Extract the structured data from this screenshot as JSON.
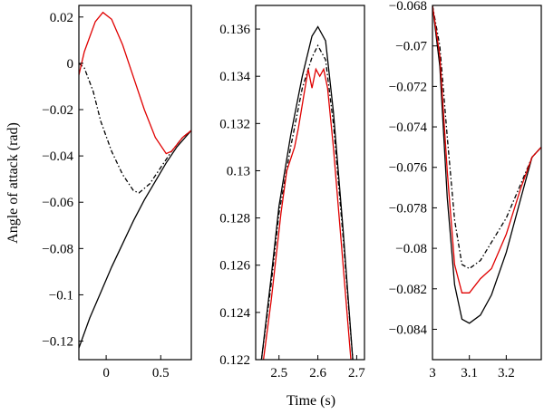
{
  "chart_data": [
    {
      "type": "line",
      "panel": "left",
      "xlim": [
        -0.25,
        0.78
      ],
      "ylim": [
        -0.128,
        0.025
      ],
      "xticks": [
        0,
        0.5
      ],
      "xtick_labels": [
        "0",
        "0.5"
      ],
      "yticks": [
        0.02,
        0,
        -0.02,
        -0.04,
        -0.06,
        -0.08,
        -0.1,
        -0.12
      ],
      "ytick_labels": [
        "0.02",
        "0",
        "−0.02",
        "−0.04",
        "−0.06",
        "−0.08",
        "−0.1",
        "−0.12"
      ],
      "ylabel": "Angle of attack (rad)",
      "series": [
        {
          "color": "#000000",
          "dash": "solid",
          "x": [
            -0.25,
            -0.15,
            -0.05,
            0.05,
            0.15,
            0.25,
            0.35,
            0.45,
            0.55,
            0.65,
            0.78
          ],
          "y": [
            -0.123,
            -0.11,
            -0.099,
            -0.088,
            -0.078,
            -0.068,
            -0.059,
            -0.051,
            -0.043,
            -0.036,
            -0.029
          ]
        },
        {
          "color": "#000000",
          "dash": "dashdot",
          "x": [
            -0.25,
            -0.2,
            -0.12,
            -0.05,
            0.05,
            0.15,
            0.25,
            0.3,
            0.4,
            0.5,
            0.6,
            0.7,
            0.78
          ],
          "y": [
            0.0,
            -0.002,
            -0.012,
            -0.025,
            -0.038,
            -0.048,
            -0.055,
            -0.056,
            -0.052,
            -0.045,
            -0.038,
            -0.032,
            -0.029
          ]
        },
        {
          "color": "#e00000",
          "dash": "solid",
          "x": [
            -0.25,
            -0.2,
            -0.1,
            -0.03,
            0.05,
            0.15,
            0.25,
            0.35,
            0.45,
            0.55,
            0.6,
            0.7,
            0.78
          ],
          "y": [
            -0.005,
            0.005,
            0.018,
            0.022,
            0.019,
            0.008,
            -0.006,
            -0.02,
            -0.032,
            -0.039,
            -0.038,
            -0.032,
            -0.029
          ]
        }
      ]
    },
    {
      "type": "line",
      "panel": "middle",
      "xlim": [
        2.44,
        2.72
      ],
      "ylim": [
        0.122,
        0.137
      ],
      "xticks": [
        2.5,
        2.6,
        2.7
      ],
      "xtick_labels": [
        "2.5",
        "2.6",
        "2.7"
      ],
      "yticks": [
        0.136,
        0.134,
        0.132,
        0.13,
        0.128,
        0.126,
        0.124,
        0.122
      ],
      "ytick_labels": [
        "0.136",
        "0.134",
        "0.132",
        "0.13",
        "0.128",
        "0.126",
        "0.124",
        "0.122"
      ],
      "xlabel": "Time (s)",
      "series": [
        {
          "color": "#000000",
          "dash": "solid",
          "x": [
            2.455,
            2.48,
            2.5,
            2.53,
            2.56,
            2.585,
            2.6,
            2.62,
            2.64,
            2.665,
            2.69
          ],
          "y": [
            0.122,
            0.1255,
            0.1285,
            0.1315,
            0.134,
            0.1357,
            0.1361,
            0.1355,
            0.1325,
            0.1275,
            0.122
          ]
        },
        {
          "color": "#000000",
          "dash": "dashdot",
          "x": [
            2.455,
            2.48,
            2.5,
            2.53,
            2.56,
            2.585,
            2.6,
            2.62,
            2.64,
            2.665,
            2.69
          ],
          "y": [
            0.122,
            0.1252,
            0.1282,
            0.131,
            0.1335,
            0.1348,
            0.1353,
            0.1347,
            0.132,
            0.1272,
            0.122
          ]
        },
        {
          "color": "#e00000",
          "dash": "solid",
          "x": [
            2.46,
            2.48,
            2.505,
            2.52,
            2.54,
            2.55,
            2.56,
            2.575,
            2.585,
            2.595,
            2.605,
            2.615,
            2.625,
            2.64,
            2.66,
            2.685
          ],
          "y": [
            0.122,
            0.1245,
            0.1282,
            0.13,
            0.131,
            0.1318,
            0.1328,
            0.1343,
            0.1335,
            0.1343,
            0.134,
            0.1343,
            0.1335,
            0.131,
            0.127,
            0.122
          ]
        }
      ]
    },
    {
      "type": "line",
      "panel": "right",
      "xlim": [
        3.0,
        3.295
      ],
      "ylim": [
        -0.0855,
        -0.068
      ],
      "xticks": [
        3.0,
        3.1,
        3.2
      ],
      "xtick_labels": [
        "3",
        "3.1",
        "3.2"
      ],
      "yticks": [
        -0.068,
        -0.07,
        -0.072,
        -0.074,
        -0.076,
        -0.078,
        -0.08,
        -0.082,
        -0.084
      ],
      "ytick_labels": [
        "−0.068",
        "−0.07",
        "−0.072",
        "−0.074",
        "−0.076",
        "−0.078",
        "−0.08",
        "−0.082",
        "−0.084"
      ],
      "series": [
        {
          "color": "#000000",
          "dash": "solid",
          "x": [
            3.0,
            3.02,
            3.04,
            3.06,
            3.08,
            3.1,
            3.13,
            3.16,
            3.2,
            3.24,
            3.27,
            3.295
          ],
          "y": [
            -0.068,
            -0.071,
            -0.0775,
            -0.0818,
            -0.0835,
            -0.0837,
            -0.0833,
            -0.0823,
            -0.0802,
            -0.0775,
            -0.0755,
            -0.075
          ]
        },
        {
          "color": "#000000",
          "dash": "dashdot",
          "x": [
            3.0,
            3.02,
            3.04,
            3.06,
            3.08,
            3.1,
            3.13,
            3.16,
            3.2,
            3.24,
            3.27,
            3.295
          ],
          "y": [
            -0.068,
            -0.07,
            -0.0745,
            -0.0786,
            -0.0808,
            -0.081,
            -0.0806,
            -0.0797,
            -0.0785,
            -0.0768,
            -0.0755,
            -0.075
          ]
        },
        {
          "color": "#e00000",
          "dash": "solid",
          "x": [
            3.0,
            3.02,
            3.04,
            3.06,
            3.08,
            3.1,
            3.13,
            3.16,
            3.2,
            3.24,
            3.27,
            3.295
          ],
          "y": [
            -0.068,
            -0.0705,
            -0.0762,
            -0.0808,
            -0.0822,
            -0.0822,
            -0.0815,
            -0.081,
            -0.0793,
            -0.077,
            -0.0755,
            -0.075
          ]
        }
      ]
    }
  ]
}
